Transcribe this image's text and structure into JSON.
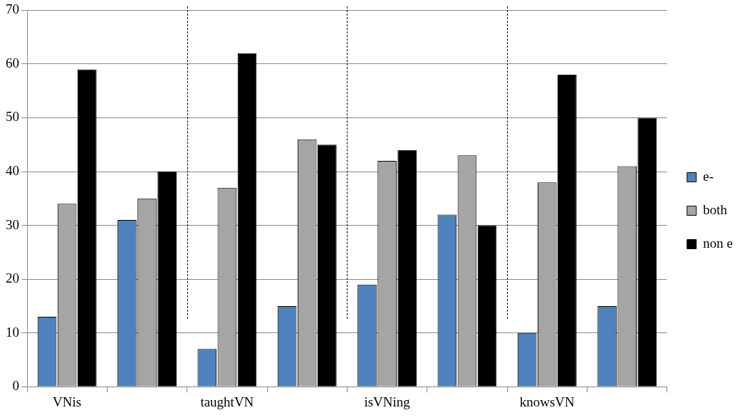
{
  "chart_data": {
    "type": "bar",
    "categories": [
      "VNis",
      null,
      "taughtVN",
      null,
      "isVNing",
      null,
      "knowsVN",
      null
    ],
    "series": [
      {
        "name": "e-",
        "color": "#4f81bd",
        "values": [
          13,
          31,
          7,
          15,
          19,
          32,
          10,
          15
        ]
      },
      {
        "name": "both",
        "color": "#a5a5a5",
        "values": [
          34,
          35,
          37,
          46,
          42,
          43,
          38,
          41
        ]
      },
      {
        "name": "non e",
        "color": "#000000",
        "values": [
          59,
          40,
          62,
          45,
          44,
          30,
          58,
          50
        ]
      }
    ],
    "ylim": [
      0,
      70
    ],
    "yticks": [
      0,
      10,
      20,
      30,
      40,
      50,
      60,
      70
    ],
    "grid": "y",
    "legend": "right"
  }
}
